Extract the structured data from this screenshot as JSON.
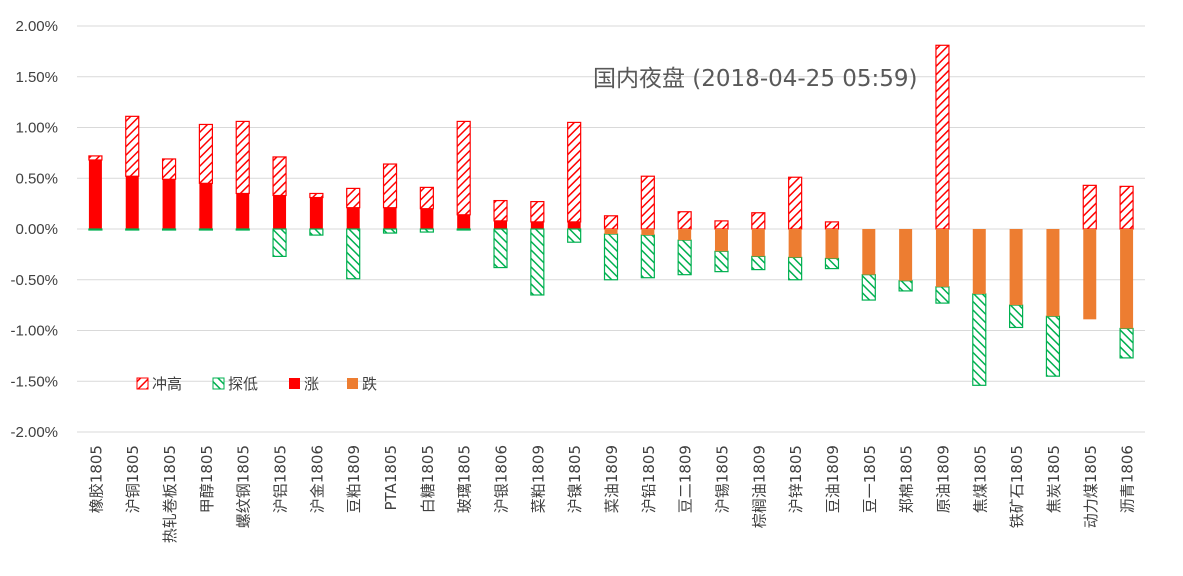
{
  "chart_data": {
    "type": "bar",
    "title": "国内夜盘 (2018-04-25 05:59)",
    "xlabel": "",
    "ylabel": "",
    "ylim": [
      -2.0,
      2.0
    ],
    "yticks": [
      "2.00%",
      "1.50%",
      "1.00%",
      "0.50%",
      "0.00%",
      "-0.50%",
      "-1.00%",
      "-1.50%",
      "-2.00%"
    ],
    "ytick_values": [
      2.0,
      1.5,
      1.0,
      0.5,
      0.0,
      -0.5,
      -1.0,
      -1.5,
      -2.0
    ],
    "grid": true,
    "legend_position": "lower-left",
    "categories": [
      "橡胶1805",
      "沪铜1805",
      "热轧卷板1805",
      "甲醇1805",
      "螺纹钢1805",
      "沪铝1805",
      "沪金1806",
      "豆粕1809",
      "PTA1805",
      "白糖1805",
      "玻璃1805",
      "沪银1806",
      "菜粕1809",
      "沪镍1805",
      "菜油1809",
      "沪铅1805",
      "豆二1809",
      "沪锡1805",
      "棕榈油1809",
      "沪锌1805",
      "豆油1809",
      "豆一1805",
      "郑棉1805",
      "原油1809",
      "焦煤1805",
      "铁矿石1805",
      "焦炭1805",
      "动力煤1805",
      "沥青1806"
    ],
    "series": [
      {
        "name": "冲高",
        "color": "#ff0000",
        "pattern": "hatch",
        "values": [
          0.72,
          1.11,
          0.69,
          1.03,
          1.06,
          0.71,
          0.35,
          0.4,
          0.64,
          0.41,
          1.06,
          0.28,
          0.27,
          1.05,
          0.13,
          0.52,
          0.17,
          0.08,
          0.16,
          0.51,
          0.07,
          0.0,
          0.0,
          1.81,
          0.0,
          0.0,
          0.0,
          0.43,
          0.42
        ]
      },
      {
        "name": "探低",
        "color": "#00b050",
        "pattern": "hatch",
        "values": [
          -0.01,
          -0.01,
          -0.01,
          -0.01,
          -0.01,
          -0.27,
          -0.06,
          -0.49,
          -0.04,
          -0.03,
          -0.01,
          -0.38,
          -0.65,
          -0.13,
          -0.5,
          -0.48,
          -0.45,
          -0.42,
          -0.4,
          -0.5,
          -0.39,
          -0.7,
          -0.61,
          -0.73,
          -1.54,
          -0.97,
          -1.45,
          -0.88,
          -1.27
        ]
      },
      {
        "name": "涨",
        "color": "#ff0000",
        "pattern": "solid",
        "values": [
          0.68,
          0.52,
          0.49,
          0.45,
          0.35,
          0.33,
          0.31,
          0.21,
          0.21,
          0.2,
          0.14,
          0.08,
          0.07,
          0.07,
          0.0,
          0.0,
          0.0,
          0.0,
          0.0,
          0.0,
          0.0,
          0.0,
          0.0,
          0.0,
          0.0,
          0.0,
          0.0,
          0.0,
          0.0
        ]
      },
      {
        "name": "跌",
        "color": "#ed7d31",
        "pattern": "solid",
        "values": [
          0.0,
          0.0,
          0.0,
          0.0,
          0.0,
          0.0,
          0.0,
          0.0,
          0.0,
          0.0,
          0.0,
          0.0,
          0.0,
          0.0,
          -0.05,
          -0.06,
          -0.11,
          -0.22,
          -0.27,
          -0.28,
          -0.29,
          -0.45,
          -0.51,
          -0.57,
          -0.64,
          -0.75,
          -0.86,
          -0.89,
          -0.98
        ]
      }
    ]
  }
}
